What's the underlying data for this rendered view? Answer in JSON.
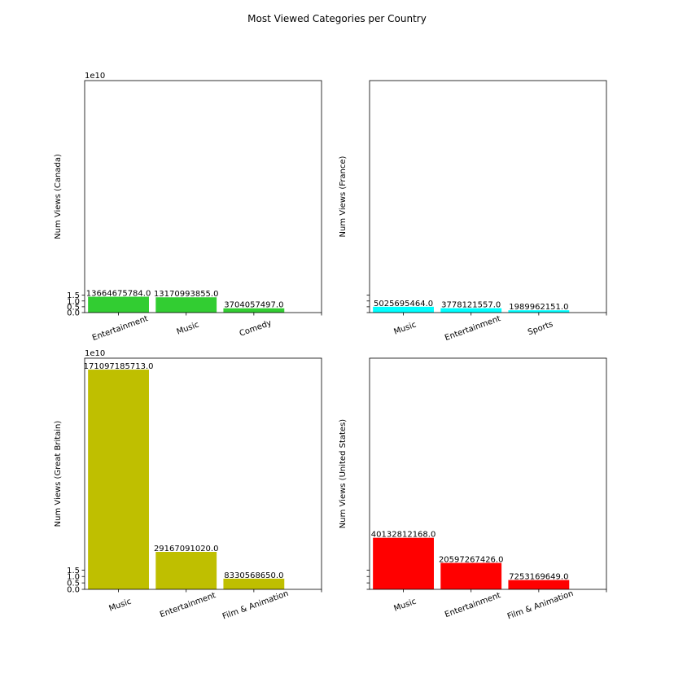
{
  "figure_title": "Most Viewed Categories per Country",
  "chart_data": [
    {
      "type": "bar",
      "ylabel": "Num Views (Canada)",
      "categories": [
        "Entertainment",
        "Music",
        "Comedy"
      ],
      "values": [
        13664675784.0,
        13170993855.0,
        3704057497.0
      ],
      "value_labels": [
        "13664675784.0",
        "13170993855.0",
        "3704057497.0"
      ],
      "color": "#32cd32",
      "ylim": [
        0,
        200000000000
      ],
      "yticks": [
        0,
        5000000000,
        10000000000,
        15000000000
      ],
      "ytick_labels": [
        "0.0",
        "0.5",
        "1.0",
        "1.5"
      ],
      "offset_text": "1e10",
      "xlim": [
        -0.5,
        3
      ]
    },
    {
      "type": "bar",
      "ylabel": "Num Views (France)",
      "categories": [
        "Music",
        "Entertainment",
        "Sports"
      ],
      "values": [
        5025695464.0,
        3778121557.0,
        1989962151.0
      ],
      "value_labels": [
        "5025695464.0",
        "3778121557.0",
        "1989962151.0"
      ],
      "color": "#00ffff",
      "ylim": [
        0,
        200000000000
      ],
      "yticks": [
        0,
        5000000000,
        10000000000,
        15000000000
      ],
      "ytick_labels": [
        "",
        "",
        "",
        ""
      ],
      "offset_text": "",
      "xlim": [
        -0.5,
        3
      ]
    },
    {
      "type": "bar",
      "ylabel": "Num Views (Great Britain)",
      "categories": [
        "Music",
        "Entertainment",
        "Film & Animation"
      ],
      "values": [
        171097185713.0,
        29167091020.0,
        8330568650.0
      ],
      "value_labels": [
        "171097185713.0",
        "29167091020.0",
        "8330568650.0"
      ],
      "color": "#bfbf00",
      "ylim": [
        0,
        180000000000
      ],
      "yticks": [
        0,
        5000000000,
        10000000000,
        15000000000
      ],
      "ytick_labels": [
        "0.0",
        "0.5",
        "1.0",
        "1.5"
      ],
      "offset_text": "1e10",
      "xlim": [
        -0.5,
        3
      ]
    },
    {
      "type": "bar",
      "ylabel": "Num Views (United States)",
      "categories": [
        "Music",
        "Entertainment",
        "Film & Animation"
      ],
      "values": [
        40132812168.0,
        20597267426.0,
        7253169649.0
      ],
      "value_labels": [
        "40132812168.0",
        "20597267426.0",
        "7253169649.0"
      ],
      "color": "#ff0000",
      "ylim": [
        0,
        180000000000
      ],
      "yticks": [
        0,
        5000000000,
        10000000000,
        15000000000
      ],
      "ytick_labels": [
        "",
        "",
        "",
        ""
      ],
      "offset_text": "",
      "xlim": [
        -0.5,
        3
      ]
    }
  ]
}
